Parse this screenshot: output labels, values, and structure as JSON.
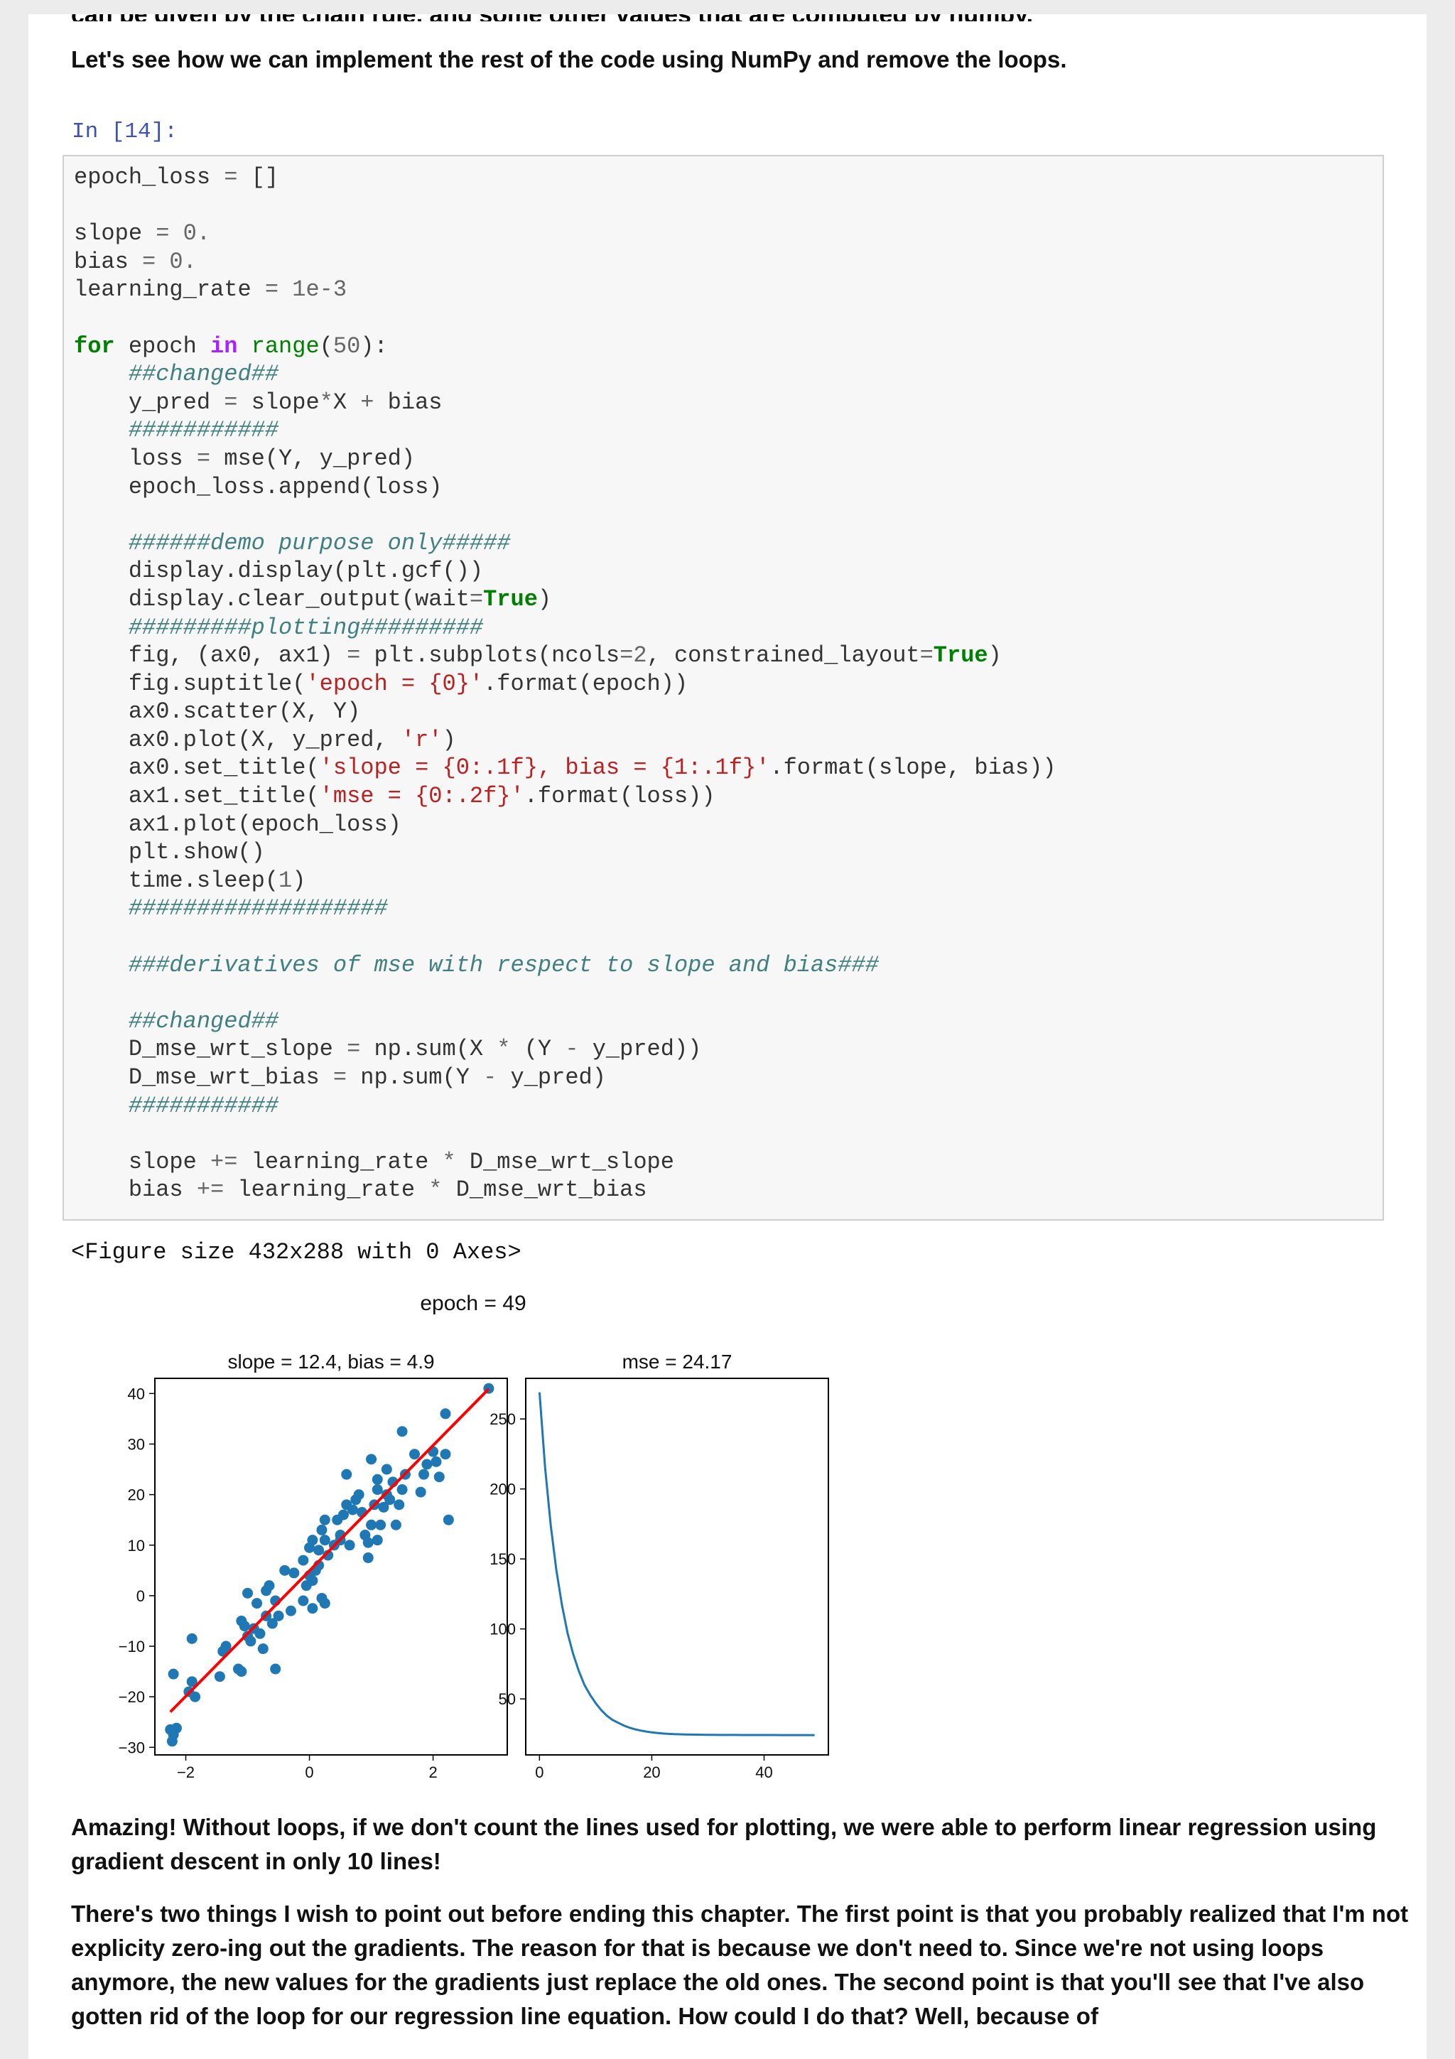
{
  "top_clipped_text": "can be given by the chain rule, and some other values that are computed by numpy.",
  "intro_text": "Let's see how we can implement the rest of the code using NumPy and remove the loops.",
  "cell_prompt": "In [14]:",
  "code_lines": [
    "epoch_loss = []",
    "",
    "slope = 0.",
    "bias = 0.",
    "learning_rate = 1e-3",
    "",
    "for epoch in range(50):",
    "    ##changed##",
    "    y_pred = slope*X + bias",
    "    ###########",
    "    loss = mse(Y, y_pred)",
    "    epoch_loss.append(loss)",
    "",
    "    ######demo purpose only#####",
    "    display.display(plt.gcf())",
    "    display.clear_output(wait=True)",
    "    #########plotting#########",
    "    fig, (ax0, ax1) = plt.subplots(ncols=2, constrained_layout=True)",
    "    fig.suptitle('epoch = {0}'.format(epoch))",
    "    ax0.scatter(X, Y)",
    "    ax0.plot(X, y_pred, 'r')",
    "    ax0.set_title('slope = {0:.1f}, bias = {1:.1f}'.format(slope, bias))",
    "    ax1.set_title('mse = {0:.2f}'.format(loss))",
    "    ax1.plot(epoch_loss)",
    "    plt.show()",
    "    time.sleep(1)",
    "    ###################",
    "",
    "    ###derivatives of mse with respect to slope and bias###",
    "",
    "    ##changed##",
    "    D_mse_wrt_slope = np.sum(X * (Y - y_pred))",
    "    D_mse_wrt_bias = np.sum(Y - y_pred)",
    "    ###########",
    "",
    "    slope += learning_rate * D_mse_wrt_slope",
    "    bias += learning_rate * D_mse_wrt_bias"
  ],
  "figure_text": "<Figure size 432x288 with 0 Axes>",
  "conclusion_1": "Amazing! Without loops, if we don't count the lines used for plotting, we were able to perform linear regression using gradient descent in only 10 lines!",
  "conclusion_2": "There's two things I wish to point out before ending this chapter. The first point is that you probably realized that I'm not explicity zero-ing out the gradients. The reason for that is because we don't need to. Since we're not using loops anymore, the new values for the gradients just replace the old ones. The second point is that you'll see that I've also gotten rid of the loop for our regression line equation. How could I do that? Well, because of",
  "chart_data": [
    {
      "type": "scatter",
      "suptitle": "epoch = 49",
      "title": "slope = 12.4, bias = 4.9",
      "xlim": [
        -2.5,
        3.2
      ],
      "ylim": [
        -31.5,
        43
      ],
      "xticks": [
        -2,
        0,
        2
      ],
      "yticks": [
        -30,
        -20,
        -10,
        0,
        10,
        20,
        30,
        40
      ],
      "point_color": "#1f77b4",
      "line_color": "#ff0000",
      "points": [
        [
          -2.25,
          -26.5
        ],
        [
          -2.2,
          -27.5
        ],
        [
          -2.15,
          -26.2
        ],
        [
          -2.22,
          -28.8
        ],
        [
          -2.2,
          -15.5
        ],
        [
          -1.9,
          -17
        ],
        [
          -1.85,
          -20
        ],
        [
          -1.9,
          -8.5
        ],
        [
          -1.45,
          -16
        ],
        [
          -1.35,
          -10
        ],
        [
          -1.4,
          -11
        ],
        [
          -1.15,
          -14.5
        ],
        [
          -1.1,
          -15
        ],
        [
          -1.0,
          -8
        ],
        [
          -1.1,
          -5
        ],
        [
          -1.05,
          -6
        ],
        [
          -0.95,
          -9
        ],
        [
          -0.9,
          -6.5
        ],
        [
          -0.8,
          -7.5
        ],
        [
          -0.75,
          -10.5
        ],
        [
          -0.7,
          -4
        ],
        [
          -0.6,
          -5.5
        ],
        [
          -0.55,
          -14.5
        ],
        [
          -0.85,
          -1.5
        ],
        [
          -0.7,
          1
        ],
        [
          -0.65,
          2
        ],
        [
          -0.55,
          -1
        ],
        [
          -0.5,
          -4
        ],
        [
          -1.0,
          0.5
        ],
        [
          -0.4,
          5
        ],
        [
          -0.25,
          4.5
        ],
        [
          -0.1,
          -1
        ],
        [
          0.05,
          -2.5
        ],
        [
          -0.05,
          2
        ],
        [
          0.05,
          3
        ],
        [
          0.1,
          5
        ],
        [
          0.15,
          6
        ],
        [
          0.2,
          -0.5
        ],
        [
          0.25,
          -1.5
        ],
        [
          0.0,
          4
        ],
        [
          -0.1,
          7
        ],
        [
          0.0,
          9.5
        ],
        [
          0.05,
          11
        ],
        [
          0.15,
          9
        ],
        [
          0.2,
          13
        ],
        [
          0.25,
          11
        ],
        [
          0.25,
          15
        ],
        [
          0.3,
          8
        ],
        [
          0.4,
          10
        ],
        [
          0.5,
          12
        ],
        [
          0.55,
          16
        ],
        [
          0.6,
          18
        ],
        [
          0.6,
          24
        ],
        [
          0.7,
          17
        ],
        [
          0.75,
          19
        ],
        [
          0.8,
          20
        ],
        [
          0.85,
          16.5
        ],
        [
          0.9,
          12
        ],
        [
          0.95,
          10.5
        ],
        [
          1.0,
          14
        ],
        [
          1.05,
          18
        ],
        [
          1.1,
          21
        ],
        [
          1.1,
          23
        ],
        [
          1.1,
          11
        ],
        [
          1.15,
          14
        ],
        [
          1.2,
          17.5
        ],
        [
          1.25,
          20
        ],
        [
          1.25,
          25
        ],
        [
          1.35,
          22.5
        ],
        [
          1.4,
          14
        ],
        [
          1.45,
          18
        ],
        [
          1.5,
          21
        ],
        [
          1.55,
          24
        ],
        [
          1.5,
          32.5
        ],
        [
          1.7,
          28
        ],
        [
          1.8,
          20.5
        ],
        [
          1.85,
          24
        ],
        [
          1.9,
          26
        ],
        [
          2.0,
          28.5
        ],
        [
          2.05,
          26.5
        ],
        [
          2.1,
          23.5
        ],
        [
          2.2,
          36
        ],
        [
          2.2,
          28
        ],
        [
          2.25,
          15
        ],
        [
          1.0,
          27
        ],
        [
          0.95,
          7.5
        ],
        [
          0.5,
          11
        ],
        [
          0.45,
          15
        ],
        [
          2.9,
          41
        ],
        [
          -1.95,
          -19
        ],
        [
          -0.3,
          -3
        ],
        [
          0.65,
          10
        ],
        [
          1.3,
          19
        ]
      ],
      "fit_line": [
        [
          -2.25,
          -23.0
        ],
        [
          2.9,
          40.9
        ]
      ]
    },
    {
      "type": "line",
      "title": "mse = 24.17",
      "xlim": [
        -2.45,
        51.45
      ],
      "ylim": [
        10,
        279
      ],
      "xticks": [
        0,
        20,
        40
      ],
      "yticks": [
        50,
        100,
        150,
        200,
        250
      ],
      "line_color": "#1f77b4",
      "x": [
        0,
        1,
        2,
        3,
        4,
        5,
        6,
        7,
        8,
        9,
        10,
        11,
        12,
        13,
        14,
        15,
        16,
        17,
        18,
        19,
        20,
        21,
        22,
        23,
        24,
        25,
        26,
        27,
        28,
        29,
        30,
        31,
        32,
        33,
        34,
        35,
        36,
        37,
        38,
        39,
        40,
        41,
        42,
        43,
        44,
        45,
        46,
        47,
        48,
        49
      ],
      "y": [
        269,
        215,
        174,
        142,
        117,
        97,
        82,
        70,
        60,
        53,
        47,
        42,
        38,
        35,
        33,
        31,
        29.5,
        28.3,
        27.4,
        26.7,
        26.1,
        25.7,
        25.3,
        25.0,
        24.8,
        24.7,
        24.6,
        24.5,
        24.45,
        24.4,
        24.35,
        24.3,
        24.28,
        24.26,
        24.25,
        24.24,
        24.23,
        24.22,
        24.21,
        24.2,
        24.2,
        24.19,
        24.19,
        24.18,
        24.18,
        24.18,
        24.17,
        24.17,
        24.17,
        24.17
      ]
    }
  ]
}
